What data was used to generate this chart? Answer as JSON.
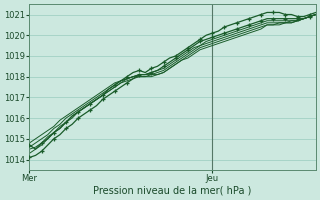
{
  "title": "",
  "xlabel": "Pression niveau de la mer( hPa )",
  "background_color": "#cce8df",
  "plot_bg_color": "#cce8df",
  "grid_color": "#99ccbe",
  "line_color": "#1a5c2a",
  "ylim": [
    1013.5,
    1021.5
  ],
  "xlim": [
    0,
    47
  ],
  "yticks": [
    1014,
    1015,
    1016,
    1017,
    1018,
    1019,
    1020,
    1021
  ],
  "xtick_labels": [
    "Mer",
    "Jeu"
  ],
  "xtick_positions": [
    0,
    30
  ],
  "vline_x": 30,
  "series": [
    [
      1014.7,
      1014.5,
      1014.8,
      1015.0,
      1015.3,
      1015.5,
      1015.8,
      1016.1,
      1016.3,
      1016.5,
      1016.7,
      1016.9,
      1017.1,
      1017.4,
      1017.6,
      1017.8,
      1018.0,
      1018.2,
      1018.3,
      1018.2,
      1018.4,
      1018.5,
      1018.7,
      1018.9,
      1019.0,
      1019.2,
      1019.4,
      1019.6,
      1019.8,
      1020.0,
      1020.1,
      1020.2,
      1020.4,
      1020.5,
      1020.6,
      1020.7,
      1020.8,
      1020.9,
      1021.0,
      1021.1,
      1021.1,
      1021.1,
      1021.0,
      1021.0,
      1020.9,
      1020.9,
      1021.0,
      1021.1
    ],
    [
      1014.1,
      1014.2,
      1014.4,
      1014.7,
      1015.0,
      1015.2,
      1015.5,
      1015.7,
      1016.0,
      1016.2,
      1016.4,
      1016.6,
      1016.9,
      1017.1,
      1017.3,
      1017.5,
      1017.7,
      1017.9,
      1018.1,
      1018.1,
      1018.2,
      1018.3,
      1018.5,
      1018.7,
      1018.9,
      1019.1,
      1019.3,
      1019.5,
      1019.7,
      1019.8,
      1019.9,
      1020.0,
      1020.1,
      1020.2,
      1020.3,
      1020.4,
      1020.5,
      1020.6,
      1020.7,
      1020.8,
      1020.8,
      1020.8,
      1020.8,
      1020.8,
      1020.8,
      1020.8,
      1020.9,
      1021.0
    ],
    [
      1014.5,
      1014.6,
      1014.8,
      1015.1,
      1015.3,
      1015.6,
      1015.8,
      1016.1,
      1016.3,
      1016.5,
      1016.7,
      1016.9,
      1017.1,
      1017.3,
      1017.5,
      1017.7,
      1017.9,
      1018.0,
      1018.1,
      1018.1,
      1018.2,
      1018.3,
      1018.4,
      1018.6,
      1018.8,
      1019.0,
      1019.2,
      1019.4,
      1019.5,
      1019.7,
      1019.8,
      1019.9,
      1020.0,
      1020.1,
      1020.2,
      1020.3,
      1020.4,
      1020.5,
      1020.6,
      1020.7,
      1020.7,
      1020.7,
      1020.7,
      1020.7,
      1020.7,
      1020.8,
      1020.9,
      1021.0
    ],
    [
      1014.6,
      1014.8,
      1015.0,
      1015.2,
      1015.5,
      1015.7,
      1016.0,
      1016.2,
      1016.4,
      1016.6,
      1016.8,
      1017.0,
      1017.2,
      1017.4,
      1017.6,
      1017.8,
      1017.9,
      1018.0,
      1018.1,
      1018.1,
      1018.1,
      1018.2,
      1018.3,
      1018.5,
      1018.7,
      1018.9,
      1019.1,
      1019.3,
      1019.5,
      1019.6,
      1019.7,
      1019.8,
      1019.9,
      1020.0,
      1020.1,
      1020.2,
      1020.3,
      1020.4,
      1020.5,
      1020.6,
      1020.6,
      1020.6,
      1020.6,
      1020.7,
      1020.7,
      1020.8,
      1020.9,
      1021.0
    ],
    [
      1014.8,
      1015.0,
      1015.2,
      1015.4,
      1015.6,
      1015.9,
      1016.1,
      1016.3,
      1016.5,
      1016.7,
      1016.9,
      1017.1,
      1017.3,
      1017.5,
      1017.7,
      1017.8,
      1017.9,
      1018.0,
      1018.0,
      1018.0,
      1018.1,
      1018.1,
      1018.2,
      1018.4,
      1018.6,
      1018.8,
      1019.0,
      1019.2,
      1019.4,
      1019.5,
      1019.6,
      1019.7,
      1019.8,
      1019.9,
      1020.0,
      1020.1,
      1020.2,
      1020.3,
      1020.4,
      1020.5,
      1020.5,
      1020.6,
      1020.6,
      1020.6,
      1020.7,
      1020.8,
      1020.9,
      1021.0
    ],
    [
      1014.3,
      1014.5,
      1014.7,
      1015.0,
      1015.3,
      1015.5,
      1015.8,
      1016.0,
      1016.3,
      1016.5,
      1016.7,
      1016.9,
      1017.1,
      1017.3,
      1017.5,
      1017.7,
      1017.8,
      1017.9,
      1018.0,
      1018.0,
      1018.0,
      1018.1,
      1018.2,
      1018.4,
      1018.6,
      1018.8,
      1018.9,
      1019.1,
      1019.3,
      1019.4,
      1019.5,
      1019.6,
      1019.7,
      1019.8,
      1019.9,
      1020.0,
      1020.1,
      1020.2,
      1020.3,
      1020.5,
      1020.5,
      1020.5,
      1020.6,
      1020.6,
      1020.7,
      1020.8,
      1020.9,
      1021.0
    ]
  ],
  "marker_series": [
    0,
    1
  ],
  "ytick_fontsize": 6,
  "xtick_fontsize": 6.5,
  "xlabel_fontsize": 7
}
